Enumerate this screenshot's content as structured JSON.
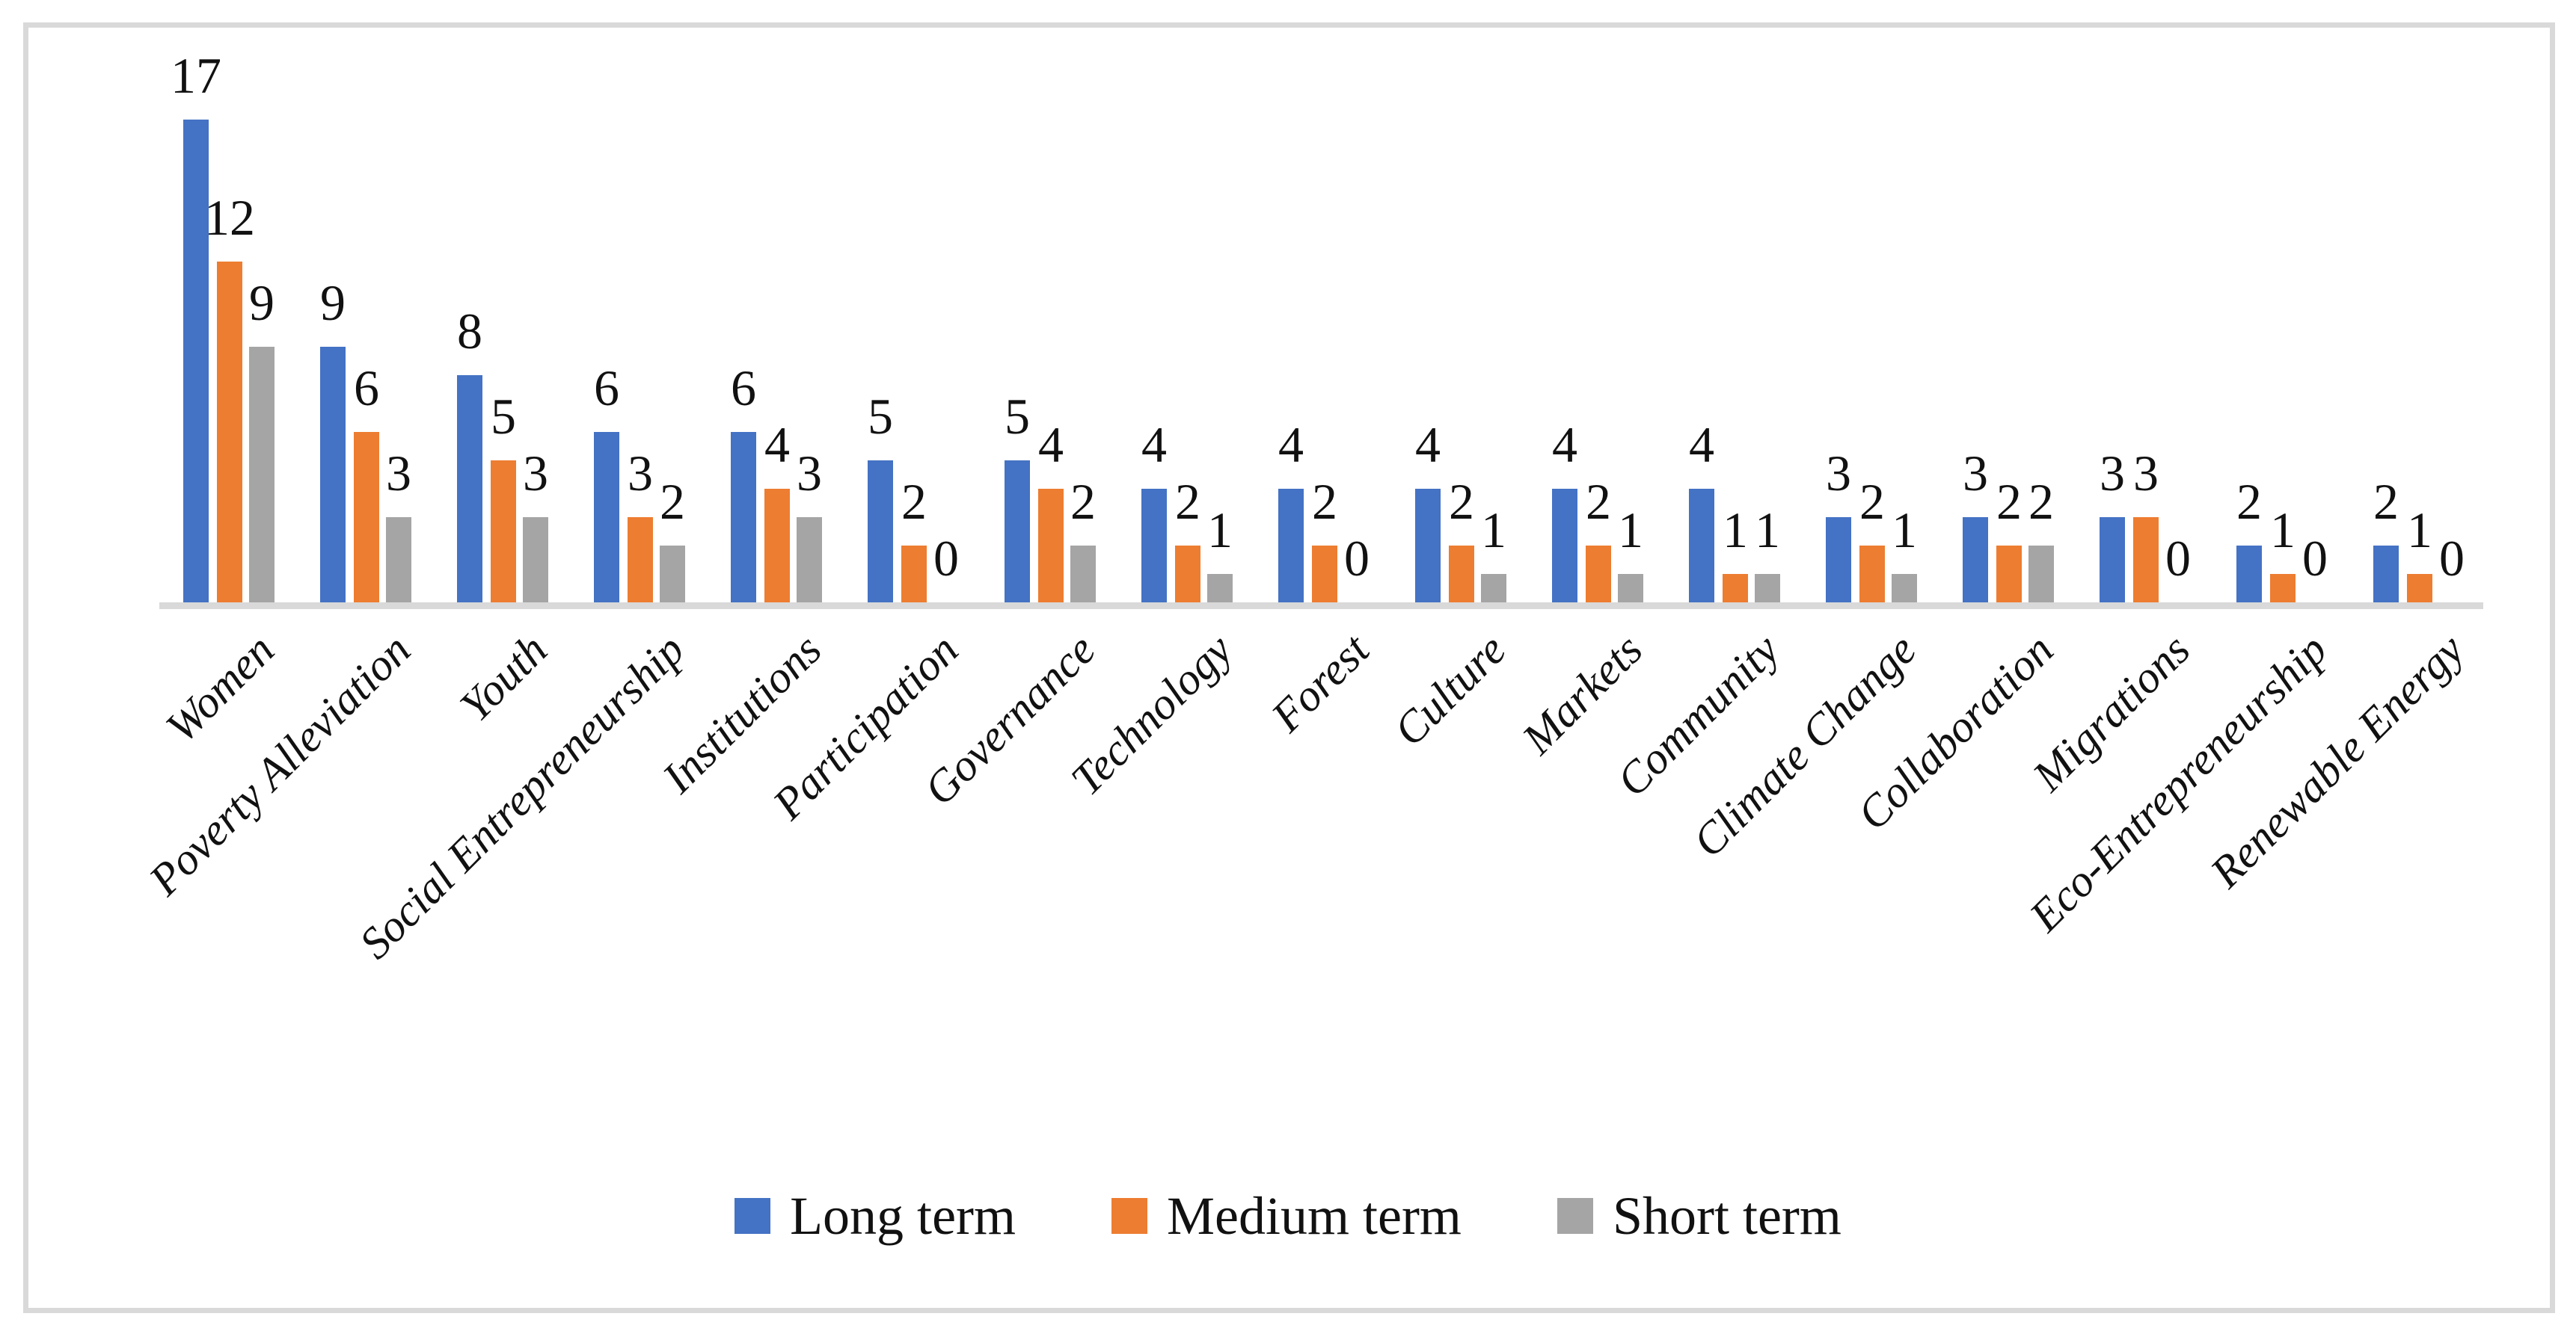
{
  "chart_data": {
    "type": "bar",
    "title": "",
    "xlabel": "",
    "ylabel": "",
    "categories": [
      "Women",
      "Poverty Alleviation",
      "Youth",
      "Social Entrepreneurship",
      "Institutions",
      "Participation",
      "Governance",
      "Technology",
      "Forest",
      "Culture",
      "Markets",
      "Community",
      "Climate Change",
      "Collaboration",
      "Migrations",
      "Eco-Entrepreneurship",
      "Renewable Energy"
    ],
    "series": [
      {
        "name": "Long term",
        "color": "#4472C4",
        "values": [
          17,
          9,
          8,
          6,
          6,
          5,
          5,
          4,
          4,
          4,
          4,
          4,
          3,
          3,
          3,
          2,
          2
        ]
      },
      {
        "name": "Medium term",
        "color": "#ED7D31",
        "values": [
          12,
          6,
          5,
          3,
          4,
          2,
          4,
          2,
          2,
          2,
          2,
          1,
          2,
          2,
          3,
          1,
          1
        ]
      },
      {
        "name": "Short term",
        "color": "#A5A5A5",
        "values": [
          9,
          3,
          3,
          2,
          3,
          0,
          2,
          1,
          0,
          1,
          1,
          1,
          1,
          2,
          0,
          0,
          0
        ]
      }
    ],
    "ylim": [
      0,
      18
    ],
    "grid": false,
    "y_axis_visible": false,
    "value_labels": "outside-end",
    "legend_position": "bottom",
    "axis_line_color": "#D9D9D9",
    "frame_color": "#D9D9D9",
    "background_color": "#FFFFFF",
    "text_color": "#111111"
  }
}
